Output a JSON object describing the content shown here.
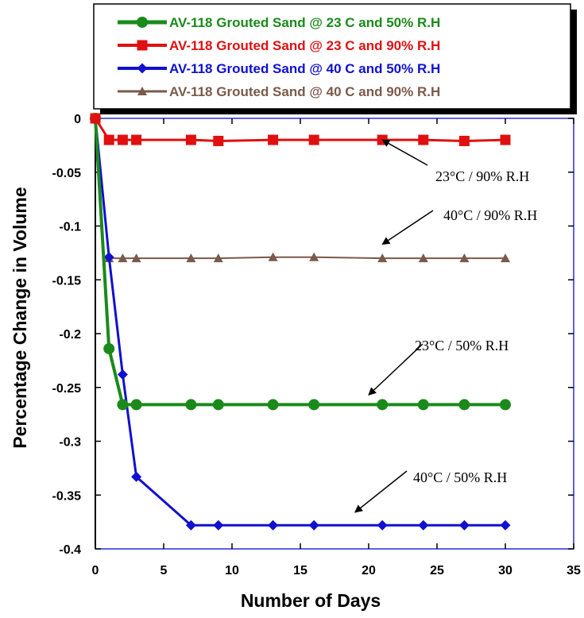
{
  "chart_data": {
    "type": "line",
    "xlabel": "Number of Days",
    "ylabel": "Percentage Change in Volume",
    "xlim": [
      0,
      35
    ],
    "ylim": [
      -0.4,
      0
    ],
    "xticks": [
      "0",
      "5",
      "10",
      "15",
      "20",
      "25",
      "30",
      "35"
    ],
    "yticks": [
      "0",
      "-0.05",
      "-0.1",
      "-0.15",
      "-0.2",
      "-0.25",
      "-0.3",
      "-0.35",
      "-0.4"
    ],
    "grid": false,
    "legend_position": "top",
    "series": [
      {
        "name": "AV-118 Grouted Sand @ 23 C and 50% R.H",
        "color": "#1a8a1a",
        "marker": "circle",
        "x": [
          0,
          1,
          2,
          3,
          7,
          9,
          13,
          16,
          21,
          24,
          27,
          30
        ],
        "y": [
          0,
          -0.214,
          -0.266,
          -0.266,
          -0.266,
          -0.266,
          -0.266,
          -0.266,
          -0.266,
          -0.266,
          -0.266,
          -0.266
        ]
      },
      {
        "name": "AV-118 Grouted Sand @ 23 C and 90% R.H",
        "color": "#e01010",
        "marker": "square",
        "x": [
          0,
          1,
          2,
          3,
          7,
          9,
          13,
          16,
          21,
          24,
          27,
          30
        ],
        "y": [
          0,
          -0.02,
          -0.02,
          -0.02,
          -0.02,
          -0.021,
          -0.02,
          -0.02,
          -0.02,
          -0.02,
          -0.021,
          -0.02
        ]
      },
      {
        "name": "AV-118 Grouted Sand @ 40 C and 50% R.H",
        "color": "#1010d0",
        "marker": "diamond",
        "x": [
          0,
          1,
          2,
          3,
          7,
          9,
          13,
          16,
          21,
          24,
          27,
          30
        ],
        "y": [
          0,
          -0.129,
          -0.238,
          -0.333,
          -0.378,
          -0.378,
          -0.378,
          -0.378,
          -0.378,
          -0.378,
          -0.378,
          -0.378
        ]
      },
      {
        "name": "AV-118 Grouted Sand @ 40 C and 90% R.H",
        "color": "#7a5a4a",
        "marker": "triangle",
        "x": [
          0,
          1,
          2,
          3,
          7,
          9,
          13,
          16,
          21,
          24,
          27,
          30
        ],
        "y": [
          0,
          -0.13,
          -0.13,
          -0.13,
          -0.13,
          -0.13,
          -0.129,
          -0.129,
          -0.13,
          -0.13,
          -0.13,
          -0.13
        ]
      }
    ],
    "annotations": [
      {
        "text": "23°C / 90% R.H",
        "x": 21,
        "y": -0.02
      },
      {
        "text": "40°C / 90% R.H",
        "x": 21,
        "y": -0.117
      },
      {
        "text": "23°C / 50% R.H",
        "x": 20,
        "y": -0.257
      },
      {
        "text": "40°C / 50% R.H",
        "x": 19,
        "y": -0.366
      }
    ]
  }
}
